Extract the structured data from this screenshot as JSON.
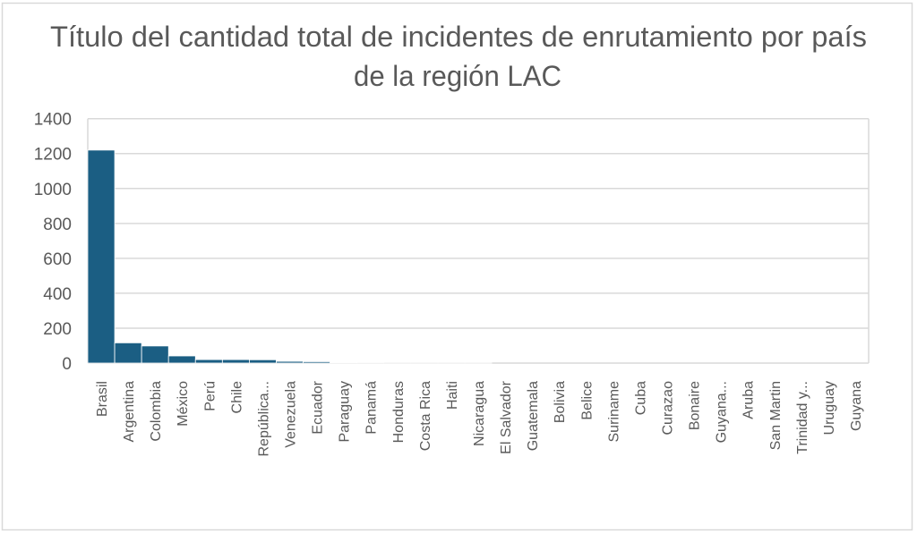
{
  "chart_data": {
    "type": "bar",
    "title": [
      "Título del cantidad total de incidentes de enrutamiento por país",
      "de la región LAC"
    ],
    "xlabel": "",
    "ylabel": "",
    "ylim": [
      0,
      1400
    ],
    "yticks": [
      0,
      200,
      400,
      600,
      800,
      1000,
      1200,
      1400
    ],
    "ytick_labels": [
      "0",
      "200",
      "400",
      "600",
      "800",
      "1000",
      "1200",
      "1400"
    ],
    "grid": true,
    "legend": "none",
    "bar_color": "#1B5E83",
    "categories": [
      "Brasil",
      "Argentina",
      "Colombia",
      "México",
      "Perú",
      "Chile",
      "República...",
      "Venezuela",
      "Ecuador",
      "Paraguay",
      "Panamá",
      "Honduras",
      "Costa Rica",
      "Haiti",
      "Nicaragua",
      "El Salvador",
      "Guatemala",
      "Bolivia",
      "Belice",
      "Suriname",
      "Cuba",
      "Curazao",
      "Bonaire",
      "Guyana...",
      "Aruba",
      "San Martin",
      "Trinidad y...",
      "Uruguay",
      "Guyana"
    ],
    "values": [
      1220,
      116,
      98,
      41,
      20,
      20,
      19,
      10,
      8,
      3,
      2,
      1,
      1,
      1,
      1,
      0,
      0,
      0,
      0,
      0,
      0,
      0,
      0,
      0,
      0,
      0,
      0,
      0,
      0
    ]
  }
}
